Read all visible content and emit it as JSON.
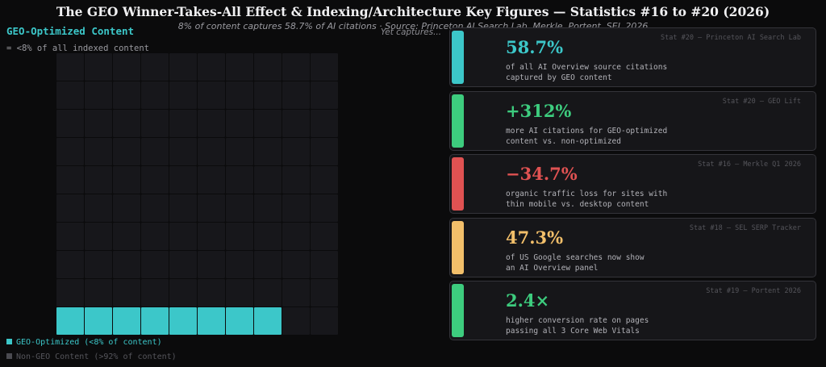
{
  "header": {
    "title": "The GEO Winner-Takes-All Effect & Indexing/Architecture Key Figures — Statistics #16 to #20 (2026)",
    "subtitle": "8% of content captures 58.7% of AI citations  · Source: Princeton AI Search Lab, Merkle, Portent, SEL 2026",
    "overlap_note": "Yet captures..."
  },
  "chart_data": {
    "type": "waffle",
    "heading": "GEO-Optimized Content",
    "subheading": "= <8% of all indexed content",
    "grid": {
      "rows": 10,
      "cols": 10
    },
    "highlighted_cells": 8,
    "series": [
      {
        "name": "GEO-Optimized (<8% of content)",
        "value_percent": 8,
        "color": "#3cc7c9"
      },
      {
        "name": "Non-GEO Content (>92% of content)",
        "value_percent": 92,
        "color": "#17171b"
      }
    ]
  },
  "legend": {
    "items": [
      {
        "label": "GEO-Optimized (<8% of content)",
        "color": "#3cc7c9",
        "text_color": "#3cc7c9"
      },
      {
        "label": "Non-GEO Content (>92% of content)",
        "color": "#4a4a50",
        "text_color": "#55555b"
      }
    ]
  },
  "cards": [
    {
      "value": "58.7%",
      "desc": "of all AI Overview source citations\ncaptured by GEO content",
      "source": "Stat #20 — Princeton AI Search Lab",
      "color": "#3cc7c9"
    },
    {
      "value": "+312%",
      "desc": "more AI citations for GEO-optimized\ncontent vs. non-optimized",
      "source": "Stat #20 — GEO Lift",
      "color": "#3dcc7e"
    },
    {
      "value": "−34.7%",
      "desc": "organic traffic loss for sites with\nthin mobile vs. desktop content",
      "source": "Stat #16 — Merkle Q1 2026",
      "color": "#e05252"
    },
    {
      "value": "47.3%",
      "desc": "of US Google searches now show\nan AI Overview panel",
      "source": "Stat #18 — SEL SERP Tracker",
      "color": "#f2bf6a"
    },
    {
      "value": "2.4×",
      "desc": "higher conversion rate on pages\npassing all 3 Core Web Vitals",
      "source": "Stat #19 — Portent 2026",
      "color": "#3dcc7e"
    }
  ]
}
